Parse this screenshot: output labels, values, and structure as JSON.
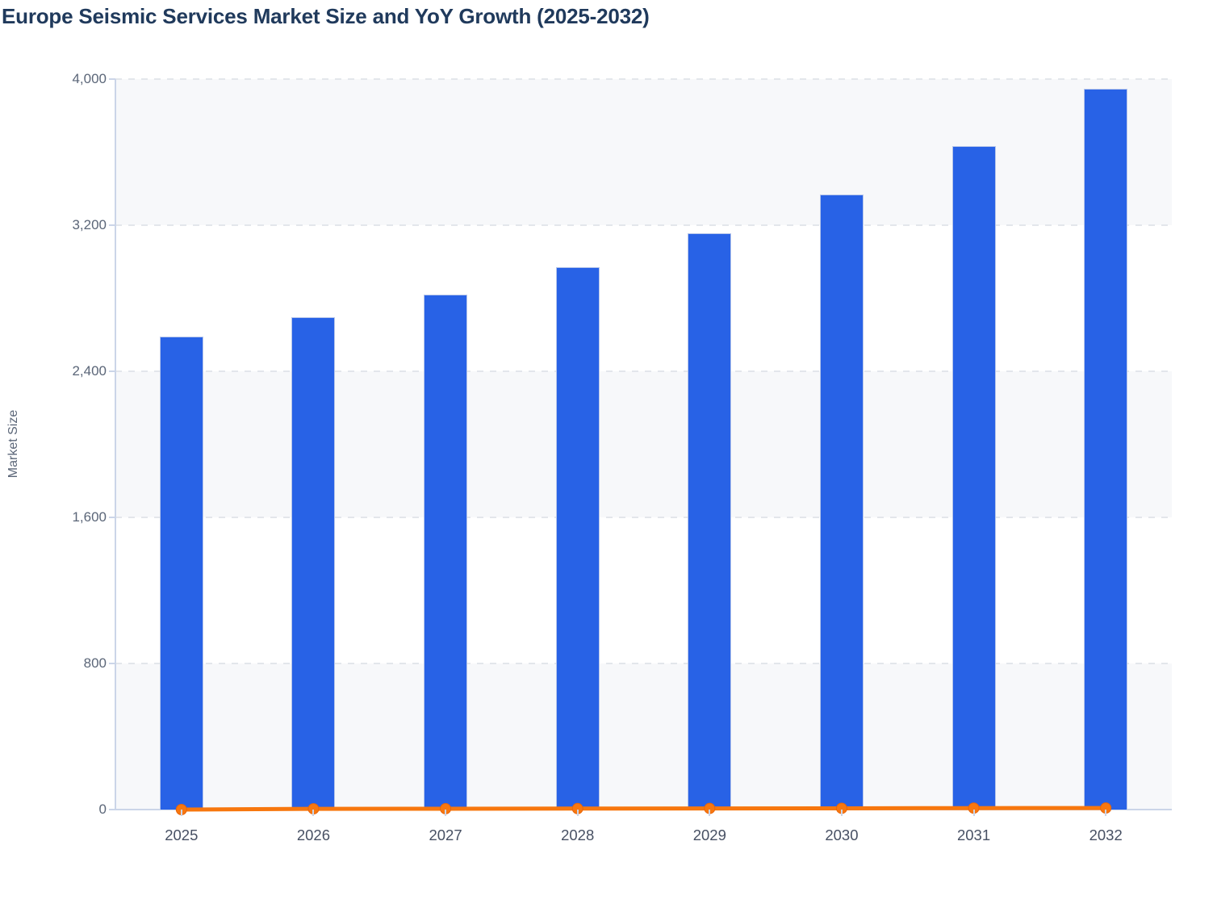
{
  "chart_data": {
    "type": "bar",
    "title": "Europe Seismic Services Market Size and YoY Growth (2025-2032)",
    "xlabel": "",
    "ylabel": "Market Size",
    "categories": [
      "2025",
      "2026",
      "2027",
      "2028",
      "2029",
      "2030",
      "2031",
      "2032"
    ],
    "series": [
      {
        "name": "Market Size",
        "type": "bar",
        "color": "#2862e6",
        "values": [
          2590,
          2695,
          2820,
          2970,
          3155,
          3370,
          3635,
          3945
        ]
      },
      {
        "name": "YoY Growth",
        "type": "line",
        "color": "#f7770e",
        "unit": "%",
        "values": [
          0,
          4.1,
          4.6,
          5.3,
          6.2,
          6.8,
          7.9,
          8.5
        ],
        "note": "plotted on the Market Size axis so it renders flat at ~0"
      }
    ],
    "ylim": [
      0,
      4000
    ],
    "yticks": [
      0,
      800,
      1600,
      2400,
      3200,
      4000
    ],
    "ytick_labels": [
      "0",
      "800",
      "1,600",
      "2,400",
      "3,200",
      "4,000"
    ],
    "grid": "horizontal dashed",
    "legend_position": "none",
    "plot_band_colors": [
      "#f7f8fa",
      "#ffffff"
    ]
  },
  "colors": {
    "title_text": "#203a5c",
    "axis_line": "#cbd5e8",
    "gridline": "#e3e6eb",
    "ytick_text": "#5b6678",
    "xtick_text": "#475063",
    "y_axis_title_text": "#5b6678",
    "bar_fill": "#2862e6",
    "bar_stroke": "#b7c6ea",
    "line_stroke": "#f7770e",
    "point_fill": "#f8770f",
    "point_stroke": "#e8650a"
  }
}
